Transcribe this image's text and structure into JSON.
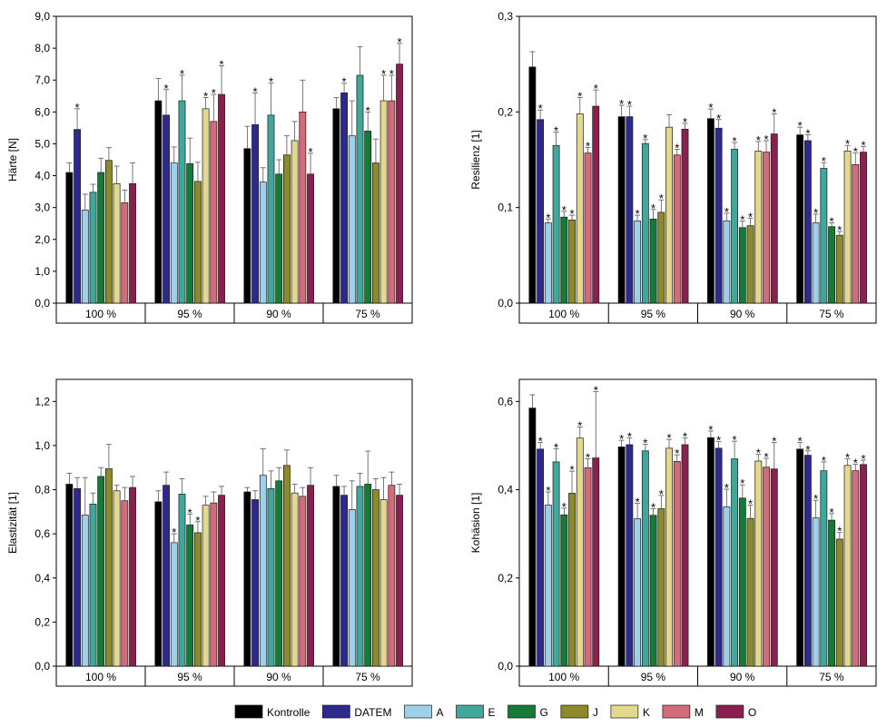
{
  "legend": {
    "items": [
      {
        "name": "Kontrolle",
        "color": "#000000"
      },
      {
        "name": "DATEM",
        "color": "#2e2a8c"
      },
      {
        "name": "A",
        "color": "#9fd0ea"
      },
      {
        "name": "E",
        "color": "#3fa89b"
      },
      {
        "name": "G",
        "color": "#157a35"
      },
      {
        "name": "J",
        "color": "#8c8a2a"
      },
      {
        "name": "K",
        "color": "#e3d88d"
      },
      {
        "name": "M",
        "color": "#d46b7a"
      },
      {
        "name": "O",
        "color": "#8c1f50"
      }
    ]
  },
  "chart_data": [
    {
      "type": "bar",
      "ylabel": "Härte [N]",
      "ylim": [
        0,
        9
      ],
      "yticks": [
        "0,0",
        "1,0",
        "2,0",
        "3,0",
        "4,0",
        "5,0",
        "6,0",
        "7,0",
        "8,0",
        "9,0"
      ],
      "categories": [
        "100 %",
        "95 %",
        "90 %",
        "75 %"
      ],
      "series": [
        {
          "name": "Kontrolle",
          "values": [
            4.1,
            6.35,
            4.85,
            6.1
          ],
          "err": [
            0.3,
            0.7,
            0.7,
            0.35
          ]
        },
        {
          "name": "DATEM",
          "values": [
            5.45,
            5.9,
            5.6,
            6.6
          ],
          "err": [
            0.65,
            0.8,
            1.0,
            0.3
          ]
        },
        {
          "name": "A",
          "values": [
            2.92,
            4.4,
            3.8,
            5.25
          ],
          "err": [
            0.5,
            0.5,
            0.45,
            1.1
          ]
        },
        {
          "name": "E",
          "values": [
            3.48,
            6.35,
            5.9,
            7.15
          ],
          "err": [
            0.25,
            0.8,
            1.0,
            0.9
          ]
        },
        {
          "name": "G",
          "values": [
            4.1,
            4.38,
            4.05,
            5.4
          ],
          "err": [
            0.45,
            0.8,
            0.45,
            0.6
          ]
        },
        {
          "name": "J",
          "values": [
            4.48,
            3.82,
            4.65,
            4.4
          ],
          "err": [
            0.4,
            0.6,
            0.6,
            0.75
          ]
        },
        {
          "name": "K",
          "values": [
            3.75,
            6.1,
            5.1,
            6.35
          ],
          "err": [
            0.55,
            0.35,
            0.6,
            0.8
          ]
        },
        {
          "name": "M",
          "values": [
            3.15,
            5.7,
            6.0,
            6.35
          ],
          "err": [
            0.4,
            0.85,
            1.0,
            0.8
          ]
        },
        {
          "name": "O",
          "values": [
            3.75,
            6.55,
            4.05,
            7.5
          ],
          "err": [
            0.65,
            0.9,
            0.65,
            0.65
          ]
        }
      ],
      "stars": [
        [
          false,
          false,
          false,
          false
        ],
        [
          true,
          true,
          true,
          true
        ],
        [
          false,
          false,
          false,
          false
        ],
        [
          false,
          true,
          true,
          false
        ],
        [
          false,
          false,
          false,
          true
        ],
        [
          false,
          false,
          false,
          false
        ],
        [
          false,
          true,
          false,
          true
        ],
        [
          false,
          true,
          false,
          true
        ],
        [
          false,
          true,
          true,
          true
        ]
      ]
    },
    {
      "type": "bar",
      "ylabel": "Resilienz [1]",
      "ylim": [
        0,
        0.3
      ],
      "yticks": [
        "0,0",
        "0,1",
        "0,2",
        "0,3"
      ],
      "ytick_values": [
        0,
        0.1,
        0.2,
        0.3
      ],
      "categories": [
        "100 %",
        "95 %",
        "90 %",
        "75 %"
      ],
      "series": [
        {
          "name": "Kontrolle",
          "values": [
            0.247,
            0.195,
            0.193,
            0.176
          ],
          "err": [
            0.016,
            0.012,
            0.01,
            0.008
          ]
        },
        {
          "name": "DATEM",
          "values": [
            0.192,
            0.195,
            0.183,
            0.17
          ],
          "err": [
            0.01,
            0.011,
            0.009,
            0.006
          ]
        },
        {
          "name": "A",
          "values": [
            0.084,
            0.086,
            0.086,
            0.084
          ],
          "err": [
            0.004,
            0.006,
            0.008,
            0.009
          ]
        },
        {
          "name": "E",
          "values": [
            0.165,
            0.167,
            0.161,
            0.141
          ],
          "err": [
            0.014,
            0.004,
            0.007,
            0.006
          ]
        },
        {
          "name": "G",
          "values": [
            0.09,
            0.088,
            0.079,
            0.08
          ],
          "err": [
            0.006,
            0.01,
            0.007,
            0.004
          ]
        },
        {
          "name": "J",
          "values": [
            0.087,
            0.095,
            0.081,
            0.071
          ],
          "err": [
            0.005,
            0.013,
            0.008,
            0.004
          ]
        },
        {
          "name": "K",
          "values": [
            0.198,
            0.184,
            0.159,
            0.159
          ],
          "err": [
            0.017,
            0.013,
            0.01,
            0.006
          ]
        },
        {
          "name": "M",
          "values": [
            0.157,
            0.155,
            0.158,
            0.145
          ],
          "err": [
            0.006,
            0.006,
            0.012,
            0.012
          ]
        },
        {
          "name": "O",
          "values": [
            0.206,
            0.182,
            0.177,
            0.158
          ],
          "err": [
            0.017,
            0.006,
            0.021,
            0.006
          ]
        }
      ],
      "stars": [
        [
          false,
          true,
          true,
          true
        ],
        [
          true,
          true,
          true,
          true
        ],
        [
          true,
          true,
          true,
          true
        ],
        [
          true,
          true,
          true,
          true
        ],
        [
          true,
          true,
          true,
          true
        ],
        [
          true,
          true,
          true,
          true
        ],
        [
          true,
          false,
          true,
          true
        ],
        [
          true,
          true,
          true,
          true
        ],
        [
          true,
          true,
          true,
          true
        ]
      ]
    },
    {
      "type": "bar",
      "ylabel": "Elastizität [1]",
      "ylim": [
        0,
        1.3
      ],
      "yticks": [
        "0,0",
        "0,2",
        "0,4",
        "0,6",
        "0,8",
        "1,0",
        "1,2"
      ],
      "ytick_values": [
        0,
        0.2,
        0.4,
        0.6,
        0.8,
        1.0,
        1.2
      ],
      "categories": [
        "100 %",
        "95 %",
        "90 %",
        "75 %"
      ],
      "series": [
        {
          "name": "Kontrolle",
          "values": [
            0.825,
            0.745,
            0.79,
            0.815
          ],
          "err": [
            0.05,
            0.05,
            0.02,
            0.05
          ]
        },
        {
          "name": "DATEM",
          "values": [
            0.805,
            0.82,
            0.755,
            0.775
          ],
          "err": [
            0.05,
            0.06,
            0.04,
            0.04
          ]
        },
        {
          "name": "A",
          "values": [
            0.685,
            0.56,
            0.865,
            0.71
          ],
          "err": [
            0.17,
            0.04,
            0.12,
            0.13
          ]
        },
        {
          "name": "E",
          "values": [
            0.735,
            0.78,
            0.805,
            0.815
          ],
          "err": [
            0.05,
            0.07,
            0.08,
            0.06
          ]
        },
        {
          "name": "G",
          "values": [
            0.86,
            0.64,
            0.84,
            0.825
          ],
          "err": [
            0.04,
            0.05,
            0.06,
            0.15
          ]
        },
        {
          "name": "J",
          "values": [
            0.895,
            0.605,
            0.91,
            0.8
          ],
          "err": [
            0.11,
            0.05,
            0.07,
            0.05
          ]
        },
        {
          "name": "K",
          "values": [
            0.795,
            0.73,
            0.785,
            0.755
          ],
          "err": [
            0.025,
            0.04,
            0.04,
            0.1
          ]
        },
        {
          "name": "M",
          "values": [
            0.75,
            0.74,
            0.77,
            0.82
          ],
          "err": [
            0.06,
            0.05,
            0.04,
            0.06
          ]
        },
        {
          "name": "O",
          "values": [
            0.81,
            0.775,
            0.82,
            0.775
          ],
          "err": [
            0.05,
            0.04,
            0.08,
            0.05
          ]
        }
      ],
      "stars": [
        [
          false,
          false,
          false,
          false
        ],
        [
          false,
          false,
          false,
          false
        ],
        [
          false,
          true,
          false,
          false
        ],
        [
          false,
          false,
          false,
          false
        ],
        [
          false,
          true,
          false,
          false
        ],
        [
          false,
          true,
          false,
          false
        ],
        [
          false,
          false,
          false,
          false
        ],
        [
          false,
          false,
          false,
          false
        ],
        [
          false,
          false,
          false,
          false
        ]
      ]
    },
    {
      "type": "bar",
      "ylabel": "Kohäsion [1]",
      "ylim": [
        0,
        0.65
      ],
      "yticks": [
        "0,0",
        "0,2",
        "0,4",
        "0,6"
      ],
      "ytick_values": [
        0,
        0.2,
        0.4,
        0.6
      ],
      "categories": [
        "100 %",
        "95 %",
        "90 %",
        "75 %"
      ],
      "series": [
        {
          "name": "Kontrolle",
          "values": [
            0.585,
            0.497,
            0.518,
            0.492
          ],
          "err": [
            0.03,
            0.015,
            0.015,
            0.015
          ]
        },
        {
          "name": "DATEM",
          "values": [
            0.492,
            0.502,
            0.494,
            0.478
          ],
          "err": [
            0.015,
            0.015,
            0.015,
            0.01
          ]
        },
        {
          "name": "A",
          "values": [
            0.365,
            0.334,
            0.361,
            0.336
          ],
          "err": [
            0.03,
            0.035,
            0.04,
            0.04
          ]
        },
        {
          "name": "E",
          "values": [
            0.463,
            0.488,
            0.47,
            0.443
          ],
          "err": [
            0.03,
            0.015,
            0.04,
            0.02
          ]
        },
        {
          "name": "G",
          "values": [
            0.343,
            0.342,
            0.381,
            0.331
          ],
          "err": [
            0.015,
            0.015,
            0.03,
            0.015
          ]
        },
        {
          "name": "J",
          "values": [
            0.392,
            0.357,
            0.335,
            0.288
          ],
          "err": [
            0.05,
            0.03,
            0.03,
            0.015
          ]
        },
        {
          "name": "K",
          "values": [
            0.517,
            0.494,
            0.465,
            0.455
          ],
          "err": [
            0.025,
            0.02,
            0.015,
            0.015
          ]
        },
        {
          "name": "M",
          "values": [
            0.45,
            0.464,
            0.451,
            0.443
          ],
          "err": [
            0.02,
            0.015,
            0.02,
            0.015
          ]
        },
        {
          "name": "O",
          "values": [
            0.472,
            0.502,
            0.447,
            0.457
          ],
          "err": [
            0.15,
            0.015,
            0.06,
            0.01
          ]
        }
      ],
      "stars": [
        [
          false,
          true,
          true,
          true
        ],
        [
          true,
          true,
          true,
          true
        ],
        [
          true,
          true,
          true,
          true
        ],
        [
          true,
          true,
          true,
          true
        ],
        [
          true,
          true,
          true,
          true
        ],
        [
          true,
          true,
          true,
          true
        ],
        [
          true,
          true,
          true,
          true
        ],
        [
          true,
          true,
          true,
          true
        ],
        [
          true,
          true,
          true,
          true
        ]
      ]
    }
  ]
}
